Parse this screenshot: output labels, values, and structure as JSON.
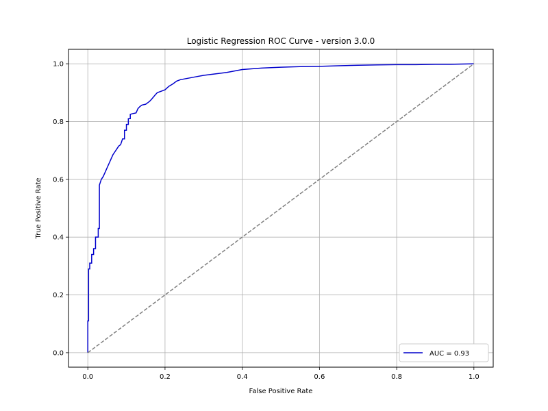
{
  "chart_data": {
    "type": "line",
    "title": "Logistic Regression ROC Curve - version 3.0.0",
    "xlabel": "False Positive Rate",
    "ylabel": "True Positive Rate",
    "xlim": [
      -0.05,
      1.05
    ],
    "ylim": [
      -0.05,
      1.05
    ],
    "xticks": [
      0.0,
      0.2,
      0.4,
      0.6,
      0.8,
      1.0
    ],
    "yticks": [
      0.0,
      0.2,
      0.4,
      0.6,
      0.8,
      1.0
    ],
    "xtick_labels": [
      "0.0",
      "0.2",
      "0.4",
      "0.6",
      "0.8",
      "1.0"
    ],
    "ytick_labels": [
      "0.0",
      "0.2",
      "0.4",
      "0.6",
      "0.8",
      "1.0"
    ],
    "grid": true,
    "legend": {
      "position": "lower-right",
      "entries": [
        "AUC = 0.93"
      ]
    },
    "series": [
      {
        "name": "AUC = 0.93",
        "color": "#0000cc",
        "style": "solid",
        "x": [
          0.0,
          0.0,
          0.002,
          0.002,
          0.005,
          0.005,
          0.01,
          0.01,
          0.015,
          0.015,
          0.02,
          0.02,
          0.027,
          0.027,
          0.03,
          0.03,
          0.035,
          0.04,
          0.045,
          0.05,
          0.055,
          0.06,
          0.065,
          0.07,
          0.075,
          0.08,
          0.085,
          0.09,
          0.095,
          0.095,
          0.1,
          0.1,
          0.105,
          0.105,
          0.11,
          0.11,
          0.115,
          0.125,
          0.13,
          0.135,
          0.14,
          0.15,
          0.155,
          0.16,
          0.165,
          0.17,
          0.175,
          0.18,
          0.19,
          0.2,
          0.21,
          0.22,
          0.23,
          0.24,
          0.26,
          0.28,
          0.3,
          0.33,
          0.36,
          0.4,
          0.45,
          0.5,
          0.55,
          0.6,
          0.65,
          0.7,
          0.75,
          0.8,
          0.85,
          0.9,
          0.94,
          1.0
        ],
        "y": [
          0.0,
          0.11,
          0.11,
          0.29,
          0.29,
          0.31,
          0.31,
          0.34,
          0.34,
          0.36,
          0.36,
          0.4,
          0.4,
          0.43,
          0.43,
          0.58,
          0.6,
          0.61,
          0.625,
          0.64,
          0.655,
          0.67,
          0.685,
          0.695,
          0.705,
          0.715,
          0.72,
          0.74,
          0.74,
          0.77,
          0.77,
          0.79,
          0.79,
          0.81,
          0.81,
          0.825,
          0.827,
          0.83,
          0.845,
          0.852,
          0.857,
          0.86,
          0.865,
          0.87,
          0.877,
          0.885,
          0.893,
          0.9,
          0.905,
          0.91,
          0.922,
          0.93,
          0.94,
          0.945,
          0.95,
          0.955,
          0.96,
          0.965,
          0.97,
          0.98,
          0.985,
          0.988,
          0.99,
          0.991,
          0.993,
          0.995,
          0.996,
          0.997,
          0.997,
          0.998,
          0.998,
          1.0
        ]
      },
      {
        "color": "#808080",
        "style": "dashed",
        "x": [
          0.0,
          1.0
        ],
        "y": [
          0.0,
          1.0
        ]
      }
    ]
  }
}
